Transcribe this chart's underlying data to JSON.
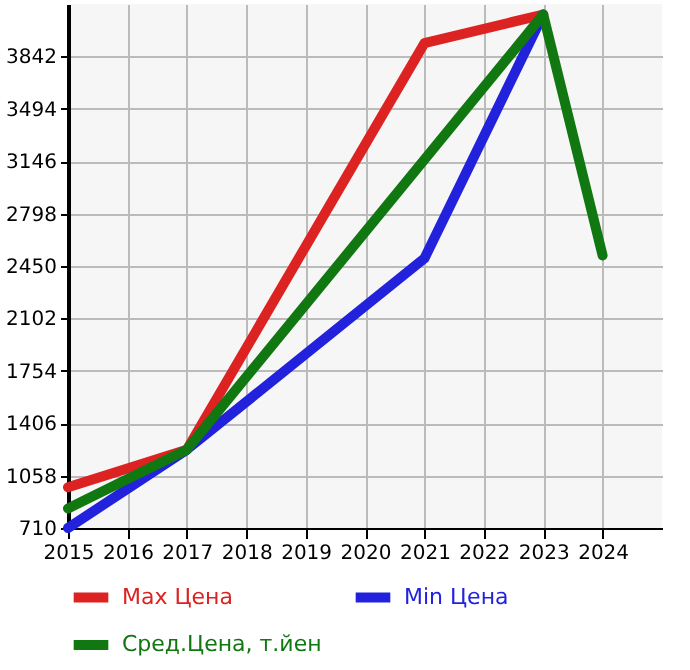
{
  "chart_data": {
    "type": "line",
    "x": [
      2015,
      2017,
      2021,
      2023
    ],
    "series": [
      {
        "name": "Max Цена",
        "color": "#dd2222",
        "values": [
          980,
          1230,
          3930,
          4120
        ]
      },
      {
        "name": "Min Цена",
        "color": "#2222dd",
        "values": [
          710,
          1230,
          2500,
          4120
        ]
      },
      {
        "name": "Сред.Цена, т.йен",
        "color": "#117711",
        "x": [
          2015,
          2017,
          2023,
          2024
        ],
        "values": [
          840,
          1230,
          4120,
          2520
        ]
      }
    ],
    "xlim": [
      2015,
      2025
    ],
    "xticks": [
      2015,
      2016,
      2017,
      2018,
      2019,
      2020,
      2021,
      2022,
      2023,
      2024
    ],
    "ylim": [
      710,
      4190
    ],
    "yticks": [
      710,
      1058,
      1406,
      1754,
      2102,
      2450,
      2798,
      3146,
      3494,
      3842
    ],
    "grid": true,
    "legend": "bottom",
    "marker": "none",
    "line_style": "solid"
  }
}
